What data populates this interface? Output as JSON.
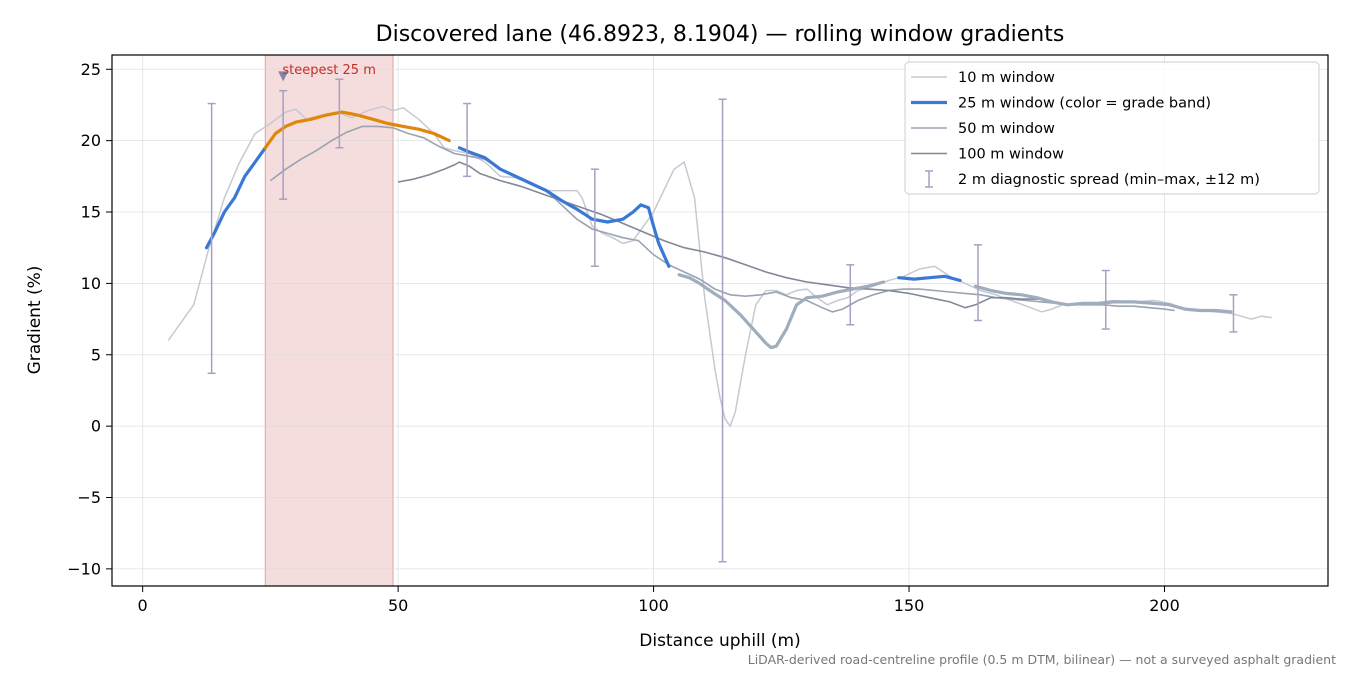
{
  "chart_data": {
    "type": "line",
    "title": "Discovered lane (46.8923, 8.1904) — rolling window gradients",
    "xlabel": "Distance uphill (m)",
    "ylabel": "Gradient (%)",
    "xlim": [
      -6,
      232
    ],
    "ylim": [
      -11.2,
      26
    ],
    "x_ticks": [
      0,
      50,
      100,
      150,
      200
    ],
    "y_ticks": [
      -10,
      -5,
      0,
      5,
      10,
      15,
      20,
      25
    ],
    "grid": true,
    "legend_position": "top-right",
    "colors": {
      "w10": "#c5c9d1",
      "w25_blue": "#3a78d6",
      "w25_orange": "#e0870b",
      "w25_gray": "#9fadbf",
      "w50": "#9aa3b1",
      "w100": "#808997",
      "errorbar": "#a7a0c2",
      "steep_fill": "#f6dddd",
      "steep_edge": "#d9a3a3",
      "annotation": "#c0302b"
    },
    "highlight": {
      "x_range": [
        24,
        49
      ],
      "label": "steepest 25 m",
      "marker_x": 27.5,
      "marker_y": 24.5
    },
    "series": [
      {
        "name": "10 m window",
        "key": "w10",
        "points": [
          [
            5,
            6
          ],
          [
            7,
            7
          ],
          [
            10,
            8.5
          ],
          [
            13,
            12.5
          ],
          [
            16,
            16
          ],
          [
            19,
            18.5
          ],
          [
            22,
            20.5
          ],
          [
            25,
            21.2
          ],
          [
            28,
            22
          ],
          [
            30,
            22.2
          ],
          [
            32,
            21.5
          ],
          [
            35,
            21.8
          ],
          [
            38,
            22
          ],
          [
            41,
            21.6
          ],
          [
            44,
            22.1
          ],
          [
            47,
            22.4
          ],
          [
            49,
            22.1
          ],
          [
            51,
            22.3
          ],
          [
            54,
            21.5
          ],
          [
            57,
            20.5
          ],
          [
            59,
            19.5
          ],
          [
            61,
            19.3
          ],
          [
            64,
            19.1
          ],
          [
            67,
            18.5
          ],
          [
            70,
            17.5
          ],
          [
            73,
            17.4
          ],
          [
            76,
            17
          ],
          [
            79,
            16.5
          ],
          [
            82,
            16.5
          ],
          [
            85,
            16.5
          ],
          [
            86,
            16
          ],
          [
            88,
            14
          ],
          [
            90,
            13.5
          ],
          [
            92,
            13.2
          ],
          [
            94,
            12.8
          ],
          [
            96,
            13
          ],
          [
            98,
            14
          ],
          [
            100,
            15
          ],
          [
            102,
            16.5
          ],
          [
            104,
            18
          ],
          [
            106,
            18.5
          ],
          [
            108,
            16
          ],
          [
            110,
            9
          ],
          [
            112,
            4
          ],
          [
            113,
            2
          ],
          [
            114,
            0.5
          ],
          [
            115,
            0
          ],
          [
            116,
            1
          ],
          [
            118,
            5
          ],
          [
            120,
            8.5
          ],
          [
            122,
            9.5
          ],
          [
            124,
            9.5
          ],
          [
            126,
            9.2
          ],
          [
            128,
            9.5
          ],
          [
            130,
            9.6
          ],
          [
            132,
            9
          ],
          [
            134,
            8.5
          ],
          [
            136,
            8.8
          ],
          [
            138,
            9
          ],
          [
            140,
            9.5
          ],
          [
            143,
            9.8
          ],
          [
            146,
            10.2
          ],
          [
            149,
            10.5
          ],
          [
            152,
            11
          ],
          [
            155,
            11.2
          ],
          [
            158,
            10.5
          ],
          [
            161,
            10
          ],
          [
            164,
            9.5
          ],
          [
            167,
            9.2
          ],
          [
            170,
            8.8
          ],
          [
            173,
            8.4
          ],
          [
            176,
            8
          ],
          [
            178,
            8.2
          ],
          [
            180,
            8.5
          ],
          [
            183,
            8.6
          ],
          [
            186,
            8.6
          ],
          [
            190,
            8.8
          ],
          [
            194,
            8.7
          ],
          [
            198,
            8.8
          ],
          [
            201,
            8.6
          ],
          [
            204,
            8.2
          ],
          [
            207,
            8.1
          ],
          [
            210,
            8
          ],
          [
            213,
            7.9
          ],
          [
            215,
            7.7
          ],
          [
            217,
            7.5
          ],
          [
            219,
            7.7
          ],
          [
            221,
            7.6
          ]
        ]
      },
      {
        "name": "25 m window (color = grade band)",
        "key": "w25",
        "points": [
          [
            12.5,
            12.5
          ],
          [
            14,
            13.5
          ],
          [
            16,
            15
          ],
          [
            18,
            16
          ],
          [
            20,
            17.5
          ],
          [
            22,
            18.5
          ],
          [
            24,
            19.5
          ],
          [
            26,
            20.5
          ],
          [
            28,
            21
          ],
          [
            30,
            21.3
          ],
          [
            33,
            21.5
          ],
          [
            36,
            21.8
          ],
          [
            39,
            22
          ],
          [
            42,
            21.8
          ],
          [
            45,
            21.5
          ],
          [
            48,
            21.2
          ],
          [
            51,
            21
          ],
          [
            54,
            20.8
          ],
          [
            57,
            20.5
          ],
          [
            60,
            20
          ],
          [
            62,
            19.5
          ],
          [
            64,
            19.2
          ],
          [
            67,
            18.8
          ],
          [
            70,
            18
          ],
          [
            73,
            17.5
          ],
          [
            76,
            17
          ],
          [
            79,
            16.5
          ],
          [
            82,
            15.8
          ],
          [
            85,
            15.2
          ],
          [
            88,
            14.5
          ],
          [
            91,
            14.3
          ],
          [
            94,
            14.5
          ],
          [
            96,
            15
          ],
          [
            97.5,
            15.5
          ],
          [
            99,
            15.3
          ],
          [
            100,
            14
          ],
          [
            101,
            12.8
          ],
          [
            103,
            11.2
          ],
          [
            105,
            10.6
          ],
          [
            107,
            10.4
          ],
          [
            109,
            10
          ],
          [
            111,
            9.5
          ],
          [
            114,
            8.8
          ],
          [
            117,
            7.8
          ],
          [
            120,
            6.6
          ],
          [
            122,
            5.8
          ],
          [
            123,
            5.5
          ],
          [
            124,
            5.6
          ],
          [
            126,
            6.8
          ],
          [
            128,
            8.5
          ],
          [
            130,
            9
          ],
          [
            133,
            9.1
          ],
          [
            136,
            9.4
          ],
          [
            139,
            9.6
          ],
          [
            142,
            9.8
          ],
          [
            145,
            10.1
          ],
          [
            148,
            10.4
          ],
          [
            151,
            10.3
          ],
          [
            154,
            10.4
          ],
          [
            157,
            10.5
          ],
          [
            160,
            10.2
          ],
          [
            163,
            9.8
          ],
          [
            166,
            9.5
          ],
          [
            169,
            9.3
          ],
          [
            172,
            9.2
          ],
          [
            175,
            9
          ],
          [
            178,
            8.7
          ],
          [
            181,
            8.5
          ],
          [
            184,
            8.6
          ],
          [
            187,
            8.6
          ],
          [
            190,
            8.7
          ],
          [
            194,
            8.7
          ],
          [
            198,
            8.6
          ],
          [
            201,
            8.5
          ],
          [
            204,
            8.2
          ],
          [
            207,
            8.1
          ],
          [
            210,
            8.1
          ],
          [
            213,
            8
          ]
        ]
      },
      {
        "name": "50 m window",
        "key": "w50",
        "points": [
          [
            25,
            17.2
          ],
          [
            28,
            18
          ],
          [
            31,
            18.7
          ],
          [
            34,
            19.3
          ],
          [
            37,
            20
          ],
          [
            40,
            20.6
          ],
          [
            43,
            21
          ],
          [
            46,
            21
          ],
          [
            49,
            20.9
          ],
          [
            52,
            20.5
          ],
          [
            55,
            20.2
          ],
          [
            58,
            19.6
          ],
          [
            61,
            19.1
          ],
          [
            64,
            18.9
          ],
          [
            67,
            18.7
          ],
          [
            70,
            18
          ],
          [
            73,
            17.5
          ],
          [
            76,
            17
          ],
          [
            79,
            16.5
          ],
          [
            82,
            15.5
          ],
          [
            85,
            14.5
          ],
          [
            88,
            13.8
          ],
          [
            91,
            13.5
          ],
          [
            94,
            13.2
          ],
          [
            97,
            13
          ],
          [
            100,
            12
          ],
          [
            103,
            11.3
          ],
          [
            106,
            10.8
          ],
          [
            109,
            10.3
          ],
          [
            112,
            9.6
          ],
          [
            115,
            9.2
          ],
          [
            118,
            9.1
          ],
          [
            121,
            9.2
          ],
          [
            124,
            9.4
          ],
          [
            127,
            9
          ],
          [
            130,
            8.8
          ],
          [
            133,
            8.3
          ],
          [
            135,
            8
          ],
          [
            137,
            8.2
          ],
          [
            140,
            8.8
          ],
          [
            143,
            9.2
          ],
          [
            146,
            9.5
          ],
          [
            149,
            9.6
          ],
          [
            152,
            9.6
          ],
          [
            155,
            9.5
          ],
          [
            158,
            9.4
          ],
          [
            161,
            9.3
          ],
          [
            164,
            9.2
          ],
          [
            167,
            9
          ],
          [
            170,
            8.9
          ],
          [
            173,
            8.8
          ],
          [
            176,
            8.7
          ],
          [
            179,
            8.6
          ],
          [
            182,
            8.5
          ],
          [
            185,
            8.5
          ],
          [
            188,
            8.5
          ],
          [
            191,
            8.4
          ],
          [
            194,
            8.4
          ],
          [
            197,
            8.3
          ],
          [
            200,
            8.2
          ],
          [
            202,
            8.1
          ]
        ]
      },
      {
        "name": "100 m window",
        "key": "w100",
        "points": [
          [
            50,
            17.1
          ],
          [
            53,
            17.3
          ],
          [
            56,
            17.6
          ],
          [
            59,
            18
          ],
          [
            61,
            18.3
          ],
          [
            62,
            18.5
          ],
          [
            64,
            18.2
          ],
          [
            66,
            17.7
          ],
          [
            70,
            17.2
          ],
          [
            74,
            16.8
          ],
          [
            78,
            16.3
          ],
          [
            82,
            15.8
          ],
          [
            86,
            15.3
          ],
          [
            90,
            14.8
          ],
          [
            94,
            14.2
          ],
          [
            98,
            13.6
          ],
          [
            102,
            13
          ],
          [
            106,
            12.5
          ],
          [
            110,
            12.2
          ],
          [
            114,
            11.8
          ],
          [
            118,
            11.3
          ],
          [
            122,
            10.8
          ],
          [
            126,
            10.4
          ],
          [
            130,
            10.1
          ],
          [
            134,
            9.9
          ],
          [
            138,
            9.7
          ],
          [
            142,
            9.6
          ],
          [
            146,
            9.5
          ],
          [
            150,
            9.3
          ],
          [
            154,
            9
          ],
          [
            158,
            8.7
          ],
          [
            161,
            8.3
          ],
          [
            163,
            8.5
          ],
          [
            166,
            9
          ],
          [
            169,
            9
          ],
          [
            172,
            8.9
          ],
          [
            176,
            8.9
          ]
        ]
      }
    ],
    "w25_bands": [
      {
        "from": 12.5,
        "to": 24,
        "color": "w25_blue"
      },
      {
        "from": 24,
        "to": 61,
        "color": "w25_orange"
      },
      {
        "from": 61,
        "to": 104,
        "color": "w25_blue"
      },
      {
        "from": 104,
        "to": 146,
        "color": "w25_gray"
      },
      {
        "from": 146,
        "to": 161,
        "color": "w25_blue"
      },
      {
        "from": 161,
        "to": 213,
        "color": "w25_gray"
      }
    ],
    "error_bars": {
      "name": "2 m diagnostic spread (min–max, ±12 m)",
      "points": [
        {
          "x": 13.5,
          "low": 3.7,
          "high": 22.6
        },
        {
          "x": 27.5,
          "low": 15.9,
          "high": 23.5
        },
        {
          "x": 38.5,
          "low": 19.5,
          "high": 24.3
        },
        {
          "x": 63.5,
          "low": 17.5,
          "high": 22.6
        },
        {
          "x": 88.5,
          "low": 11.2,
          "high": 18
        },
        {
          "x": 113.5,
          "low": -9.5,
          "high": 22.9
        },
        {
          "x": 138.5,
          "low": 7.1,
          "high": 11.3
        },
        {
          "x": 163.5,
          "low": 7.4,
          "high": 12.7
        },
        {
          "x": 188.5,
          "low": 6.8,
          "high": 10.9
        },
        {
          "x": 213.5,
          "low": 6.6,
          "high": 9.2
        }
      ]
    }
  },
  "footnote": "LiDAR-derived road-centreline profile (0.5 m DTM, bilinear) — not a surveyed asphalt gradient"
}
